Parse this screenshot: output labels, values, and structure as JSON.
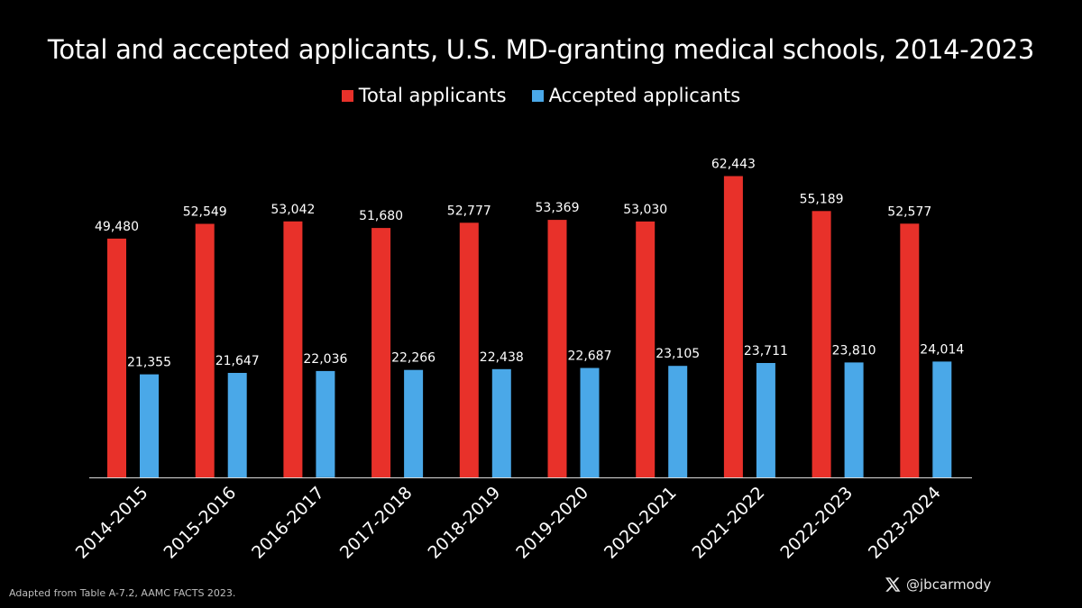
{
  "chart_data": {
    "type": "bar",
    "title": "Total and accepted applicants, U.S. MD-granting medical schools, 2014-2023",
    "xlabel": "",
    "ylabel": "",
    "ylim": [
      0,
      70000
    ],
    "grid": false,
    "legend_position": "top-center",
    "categories": [
      "2014-2015",
      "2015-2016",
      "2016-2017",
      "2017-2018",
      "2018-2019",
      "2019-2020",
      "2020-2021",
      "2021-2022",
      "2022-2023",
      "2023-2024"
    ],
    "series": [
      {
        "name": "Total applicants",
        "color": "#e8312a",
        "values": [
          49480,
          52549,
          53042,
          51680,
          52777,
          53369,
          53030,
          62443,
          55189,
          52577
        ],
        "labels": [
          "49,480",
          "52,549",
          "53,042",
          "51,680",
          "52,777",
          "53,369",
          "53,030",
          "62,443",
          "55,189",
          "52,577"
        ]
      },
      {
        "name": "Accepted applicants",
        "color": "#4aa8e8",
        "values": [
          21355,
          21647,
          22036,
          22266,
          22438,
          22687,
          23105,
          23711,
          23810,
          24014
        ],
        "labels": [
          "21,355",
          "21,647",
          "22,036",
          "22,266",
          "22,438",
          "22,687",
          "23,105",
          "23,711",
          "23,810",
          "24,014"
        ]
      }
    ]
  },
  "footer": {
    "source": "Adapted from Table A-7.2, AAMC FACTS 2023.",
    "handle": "@jbcarmody",
    "handle_icon": "x-logo-icon"
  }
}
